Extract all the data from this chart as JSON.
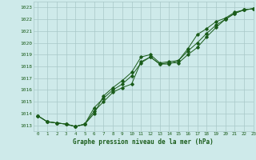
{
  "title": "Graphe pression niveau de la mer (hPa)",
  "bg_color": "#ceeaea",
  "grid_color": "#a8c8c8",
  "line_color": "#1a5c1a",
  "xlim": [
    -0.5,
    23
  ],
  "ylim": [
    1012.5,
    1023.5
  ],
  "yticks": [
    1013,
    1014,
    1015,
    1016,
    1017,
    1018,
    1019,
    1020,
    1021,
    1022,
    1023
  ],
  "xticks": [
    0,
    1,
    2,
    3,
    4,
    5,
    6,
    7,
    8,
    9,
    10,
    11,
    12,
    13,
    14,
    15,
    16,
    17,
    18,
    19,
    20,
    21,
    22,
    23
  ],
  "line1_x": [
    0,
    1,
    2,
    3,
    4,
    5,
    6,
    7,
    8,
    9,
    10,
    11,
    12,
    13,
    14,
    15,
    16,
    17,
    18,
    19,
    20,
    21,
    22,
    23
  ],
  "line1_y": [
    1013.8,
    1013.3,
    1013.2,
    1013.1,
    1012.9,
    1013.1,
    1014.2,
    1015.0,
    1015.8,
    1016.2,
    1016.5,
    1018.4,
    1018.8,
    1018.2,
    1018.3,
    1018.3,
    1019.0,
    1019.6,
    1020.5,
    1021.3,
    1022.0,
    1022.5,
    1022.8,
    1022.9
  ],
  "line2_x": [
    0,
    1,
    2,
    3,
    4,
    5,
    6,
    7,
    8,
    9,
    10,
    11,
    12,
    13,
    14,
    15,
    16,
    17,
    18,
    19,
    20,
    21,
    22,
    23
  ],
  "line2_y": [
    1013.8,
    1013.3,
    1013.2,
    1013.1,
    1012.9,
    1013.1,
    1014.5,
    1015.3,
    1016.0,
    1016.5,
    1017.2,
    1018.3,
    1018.8,
    1018.2,
    1018.2,
    1018.5,
    1019.3,
    1020.0,
    1020.8,
    1021.5,
    1022.0,
    1022.5,
    1022.8,
    1022.9
  ],
  "line3_x": [
    0,
    1,
    2,
    3,
    4,
    5,
    6,
    7,
    8,
    9,
    10,
    11,
    12,
    13,
    14,
    15,
    16,
    17,
    18,
    19,
    20,
    21,
    22,
    23
  ],
  "line3_y": [
    1013.8,
    1013.3,
    1013.2,
    1013.1,
    1012.9,
    1013.1,
    1014.0,
    1015.5,
    1016.2,
    1016.8,
    1017.5,
    1018.8,
    1019.0,
    1018.3,
    1018.4,
    1018.5,
    1019.5,
    1020.7,
    1021.2,
    1021.8,
    1022.1,
    1022.6,
    1022.8,
    1022.9
  ]
}
